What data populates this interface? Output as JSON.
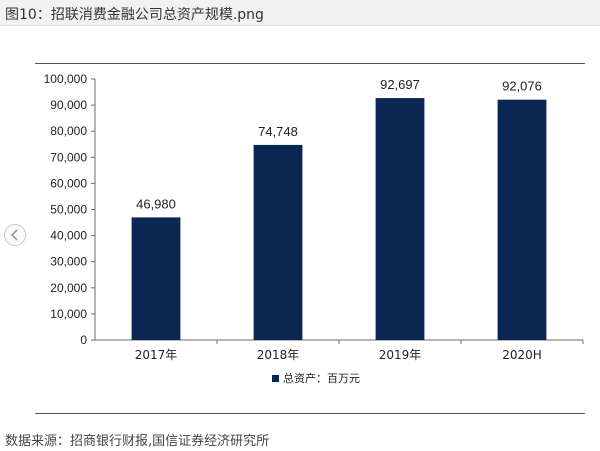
{
  "header": {
    "title": "图10：招联消费金融公司总资产规模.png"
  },
  "nav": {
    "prev_icon": "chevron-left-icon"
  },
  "footer": {
    "source": "数据来源：招商银行财报,国信证券经济研究所"
  },
  "colors": {
    "bar": "#0c2653",
    "axis": "#6b6b6b",
    "text": "#222222"
  },
  "chart_data": {
    "type": "bar",
    "categories": [
      "2017年",
      "2018年",
      "2019年",
      "2020H"
    ],
    "series": [
      {
        "name": "总资产：百万元",
        "values": [
          46980,
          74748,
          92697,
          92076
        ]
      }
    ],
    "data_labels": [
      "46,980",
      "74,748",
      "92,697",
      "92,076"
    ],
    "ylim": [
      0,
      100000
    ],
    "yticks": [
      "0",
      "10,000",
      "20,000",
      "30,000",
      "40,000",
      "50,000",
      "60,000",
      "70,000",
      "80,000",
      "90,000",
      "100,000"
    ],
    "legend_position": "bottom-center",
    "grid": false
  }
}
